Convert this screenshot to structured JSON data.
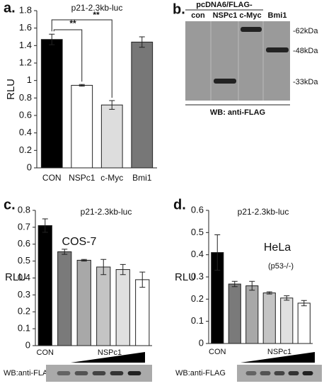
{
  "chart_data": [
    {
      "type": "bar",
      "panel_label": "a.",
      "title": "p21-2.3kb-luc",
      "y_label": "RLU",
      "categories": [
        "CON",
        "NSPc1",
        "c-Myc",
        "Bmi1"
      ],
      "values": [
        1.47,
        0.945,
        0.72,
        1.44
      ],
      "errors": [
        0.06,
        0.01,
        0.05,
        0.06
      ],
      "colors": [
        "#000000",
        "#ffffff",
        "#dddddd",
        "#777777"
      ],
      "annotations": [
        "**",
        "**"
      ],
      "ylim": [
        0,
        1.8
      ],
      "yticks": [
        0,
        0.2,
        0.4,
        0.6,
        0.8,
        1,
        1.2,
        1.4,
        1.6,
        1.8
      ]
    },
    {
      "type": "bar",
      "panel_label": "c.",
      "title": "p21-2.3kb-luc",
      "y_label": "RLU",
      "categories": [
        "CON",
        null,
        null,
        null,
        null,
        null
      ],
      "group_label": "NSPc1",
      "values": [
        0.71,
        0.555,
        0.505,
        0.465,
        0.45,
        0.39
      ],
      "errors": [
        0.04,
        0.015,
        0.005,
        0.045,
        0.03,
        0.045
      ],
      "colors": [
        "#000000",
        "#7a7a7a",
        "#a8a8a8",
        "#c4c4c4",
        "#e0e0e0",
        "#ffffff"
      ],
      "annotations": [
        "COS-7"
      ],
      "blot_label": "WB:anti-FLAG",
      "ylim": [
        0,
        0.8
      ],
      "yticks": [
        0,
        0.1,
        0.2,
        0.3,
        0.4,
        0.5,
        0.6,
        0.7,
        0.8
      ]
    },
    {
      "type": "bar",
      "panel_label": "d.",
      "title": "p21-2.3kb-luc",
      "y_label": "RLU",
      "categories": [
        "CON",
        null,
        null,
        null,
        null,
        null
      ],
      "group_label": "NSPc1",
      "values": [
        0.41,
        0.268,
        0.26,
        0.228,
        0.205,
        0.182
      ],
      "errors": [
        0.08,
        0.012,
        0.02,
        0.005,
        0.01,
        0.012
      ],
      "colors": [
        "#000000",
        "#7a7a7a",
        "#a8a8a8",
        "#c4c4c4",
        "#e0e0e0",
        "#ffffff"
      ],
      "annotations": [
        "HeLa",
        "(p53-/-)"
      ],
      "blot_label": "WB:anti-FLAG",
      "ylim": [
        0,
        0.6
      ],
      "yticks": [
        0,
        0.1,
        0.2,
        0.3,
        0.4,
        0.5,
        0.6
      ]
    }
  ],
  "blot": {
    "panel_label": "b.",
    "title": "pcDNA6/FLAG-",
    "lanes": [
      "con",
      "NSPc1",
      "c-Myc",
      "Bmi1"
    ],
    "markers": [
      "-62kDa",
      "-48kDa",
      "-33kDa"
    ],
    "label": "WB: anti-FLAG"
  }
}
